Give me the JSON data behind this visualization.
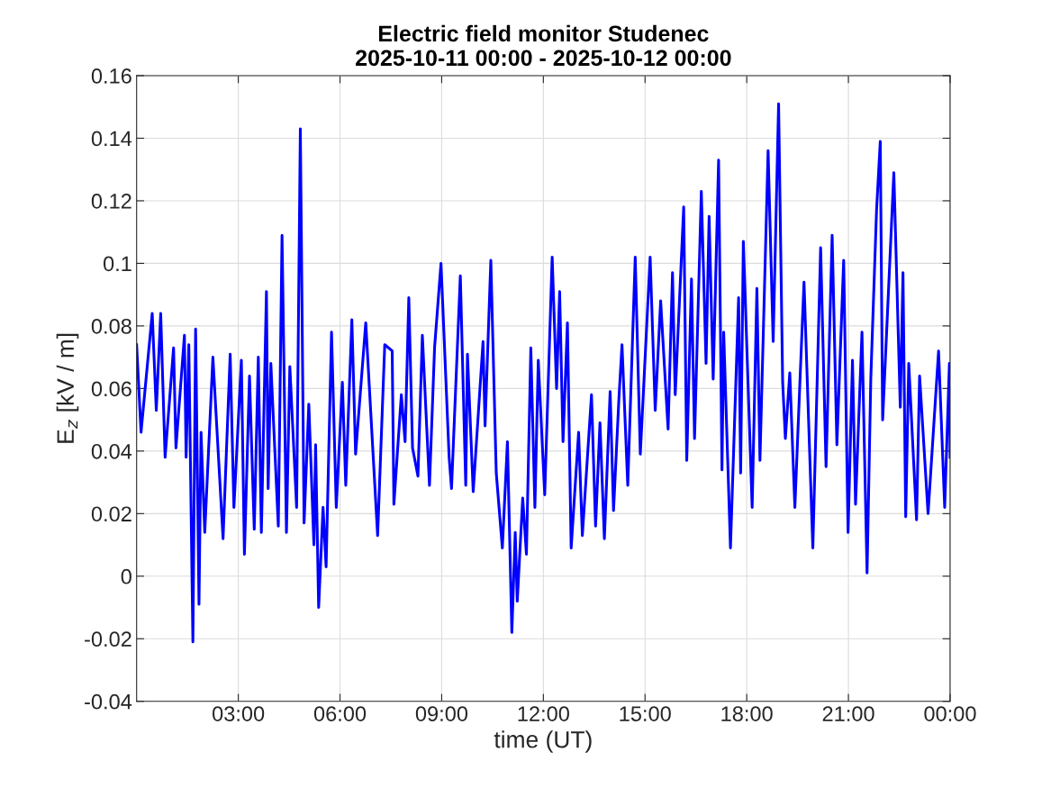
{
  "chart_data": {
    "type": "line",
    "title": "Electric field monitor Studenec",
    "subtitle": "2025-10-11 00:00 - 2025-10-12 00:00",
    "xlabel": "time (UT)",
    "ylabel": "E$_{z}$ [kV / m]",
    "xlim": [
      0,
      24
    ],
    "xticks": [
      {
        "value": 3,
        "label": "03:00"
      },
      {
        "value": 6,
        "label": "06:00"
      },
      {
        "value": 9,
        "label": "09:00"
      },
      {
        "value": 12,
        "label": "12:00"
      },
      {
        "value": 15,
        "label": "15:00"
      },
      {
        "value": 18,
        "label": "18:00"
      },
      {
        "value": 21,
        "label": "21:00"
      },
      {
        "value": 24,
        "label": "00:00"
      }
    ],
    "ylim": [
      -0.04,
      0.16
    ],
    "yticks": [
      -0.04,
      -0.02,
      0,
      0.02,
      0.04,
      0.06,
      0.08,
      0.1,
      0.12,
      0.14,
      0.16
    ],
    "grid": true,
    "line_style": "solid",
    "series": [
      {
        "color": "#0000ff",
        "x": [
          0.0,
          0.13,
          0.46,
          0.58,
          0.71,
          0.84,
          1.09,
          1.16,
          1.41,
          1.46,
          1.54,
          1.66,
          1.74,
          1.84,
          1.9,
          2.01,
          2.25,
          2.55,
          2.76,
          2.87,
          3.09,
          3.18,
          3.33,
          3.47,
          3.59,
          3.68,
          3.83,
          3.88,
          3.96,
          4.18,
          4.29,
          4.42,
          4.52,
          4.72,
          4.83,
          4.94,
          5.08,
          5.23,
          5.28,
          5.37,
          5.5,
          5.59,
          5.75,
          5.89,
          6.07,
          6.17,
          6.35,
          6.46,
          6.76,
          7.11,
          7.32,
          7.54,
          7.59,
          7.81,
          7.92,
          8.03,
          8.14,
          8.3,
          8.43,
          8.64,
          8.79,
          8.98,
          9.22,
          9.29,
          9.55,
          9.71,
          9.76,
          9.93,
          10.22,
          10.28,
          10.45,
          10.61,
          10.79,
          10.94,
          11.07,
          11.17,
          11.23,
          11.39,
          11.5,
          11.63,
          11.75,
          11.85,
          12.04,
          12.26,
          12.39,
          12.48,
          12.58,
          12.71,
          12.82,
          13.04,
          13.15,
          13.42,
          13.54,
          13.67,
          13.8,
          13.97,
          14.07,
          14.23,
          14.32,
          14.49,
          14.71,
          14.86,
          15.15,
          15.3,
          15.46,
          15.68,
          15.81,
          15.89,
          16.14,
          16.23,
          16.37,
          16.46,
          16.66,
          16.8,
          16.89,
          17.01,
          17.17,
          17.27,
          17.32,
          17.52,
          17.76,
          17.82,
          17.9,
          18.16,
          18.3,
          18.39,
          18.63,
          18.78,
          18.94,
          19.06,
          19.14,
          19.27,
          19.42,
          19.58,
          19.69,
          19.95,
          20.18,
          20.34,
          20.52,
          20.66,
          20.86,
          20.99,
          21.12,
          21.21,
          21.4,
          21.55,
          21.66,
          21.83,
          21.94,
          22.01,
          22.34,
          22.53,
          22.61,
          22.69,
          22.78,
          23.01,
          23.1,
          23.35,
          23.66,
          23.84,
          23.98,
          24.0
        ],
        "values": [
          0.074,
          0.046,
          0.084,
          0.053,
          0.084,
          0.038,
          0.073,
          0.041,
          0.077,
          0.038,
          0.074,
          -0.021,
          0.079,
          -0.009,
          0.046,
          0.014,
          0.07,
          0.012,
          0.071,
          0.022,
          0.069,
          0.007,
          0.064,
          0.015,
          0.07,
          0.014,
          0.091,
          0.028,
          0.068,
          0.016,
          0.109,
          0.014,
          0.067,
          0.022,
          0.143,
          0.017,
          0.055,
          0.01,
          0.042,
          -0.01,
          0.022,
          0.003,
          0.078,
          0.022,
          0.062,
          0.029,
          0.082,
          0.039,
          0.081,
          0.013,
          0.074,
          0.072,
          0.023,
          0.058,
          0.043,
          0.089,
          0.041,
          0.032,
          0.077,
          0.029,
          0.073,
          0.1,
          0.038,
          0.028,
          0.096,
          0.029,
          0.071,
          0.027,
          0.075,
          0.048,
          0.101,
          0.033,
          0.009,
          0.043,
          -0.018,
          0.014,
          -0.008,
          0.025,
          0.007,
          0.073,
          0.022,
          0.069,
          0.026,
          0.102,
          0.06,
          0.091,
          0.043,
          0.081,
          0.009,
          0.046,
          0.013,
          0.058,
          0.016,
          0.049,
          0.012,
          0.059,
          0.021,
          0.057,
          0.074,
          0.029,
          0.102,
          0.039,
          0.102,
          0.053,
          0.088,
          0.047,
          0.097,
          0.058,
          0.118,
          0.037,
          0.095,
          0.044,
          0.123,
          0.068,
          0.115,
          0.063,
          0.133,
          0.034,
          0.078,
          0.009,
          0.089,
          0.033,
          0.107,
          0.022,
          0.092,
          0.037,
          0.136,
          0.075,
          0.151,
          0.062,
          0.044,
          0.065,
          0.022,
          0.065,
          0.094,
          0.009,
          0.105,
          0.035,
          0.109,
          0.042,
          0.101,
          0.014,
          0.069,
          0.023,
          0.078,
          0.001,
          0.063,
          0.117,
          0.139,
          0.05,
          0.129,
          0.054,
          0.097,
          0.019,
          0.068,
          0.018,
          0.064,
          0.02,
          0.072,
          0.022,
          0.068,
          0.038
        ]
      }
    ]
  }
}
